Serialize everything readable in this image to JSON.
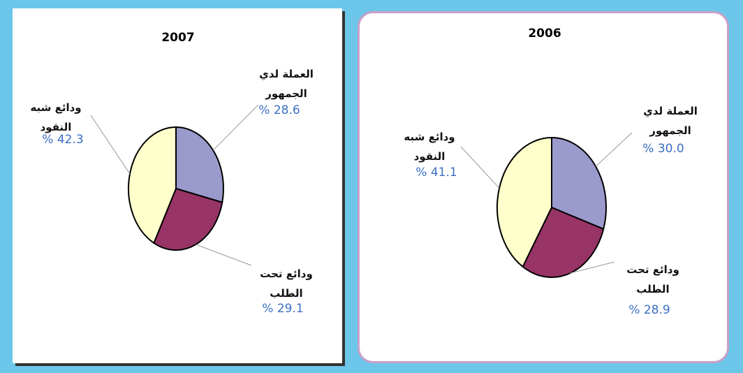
{
  "chart_data": [
    {
      "type": "pie",
      "title": "2007",
      "categories": [
        "العملة لدي الجمهور",
        "ودائع تحت الطلب",
        "ودائع شبه النقود"
      ],
      "values": [
        28.6,
        29.1,
        42.3
      ],
      "value_labels": [
        "% 28.6",
        "% 29.1",
        "% 42.3"
      ],
      "colors": [
        "#9a9acc",
        "#983466",
        "#ffffcc"
      ]
    },
    {
      "type": "pie",
      "title": "2006",
      "categories": [
        "العملة لدي الجمهور",
        "ودائع تحت الطلب",
        "ودائع شبه النقود"
      ],
      "values": [
        30.0,
        28.9,
        41.1
      ],
      "value_labels": [
        "% 30.0",
        "% 28.9",
        "% 41.1"
      ],
      "colors": [
        "#9a9acc",
        "#983466",
        "#ffffcc"
      ]
    }
  ]
}
